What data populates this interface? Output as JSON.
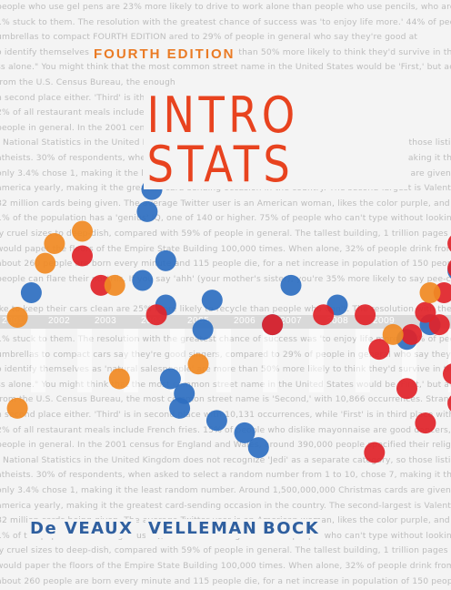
{
  "cover": {
    "edition": "FOURTH EDITION",
    "title": "INTRO STATS",
    "authors": [
      "De VEAUX",
      "VELLEMAN",
      "BOCK"
    ],
    "years": [
      "2001",
      "2002",
      "2003",
      "2004",
      "2005",
      "2006",
      "2007",
      "2008",
      "2009",
      "2010"
    ],
    "background_lines": [
      "people who use gel pens are 23% more likely to drive to work alone than people who use pencils, who are more likely",
      "1% stuck to them. The resolution with the greatest chance of success was 'to enjoy life more.' 44% of people with",
      "umbrellas to compact   FOURTH EDITION   ared to 29% of people in general who say they're good at",
      "o identify themselves as 'natural salespeople' are more than 50% more likely to think they'd survive in the year",
      "ss alone.\" You might think that the most common street name in the United States would be 'First,' but according",
      "from the U.S. Census Bureau, the                                                         enough",
      "n second place either. 'Third' is                                                        ith 9,8",
      "2% of all restaurant meals include                                                       ompar",
      "people in general. In the 2001 cen                                                      nd and",
      "r National Statistics in the United Kingdom does not recognize 'Jedi' as a separate category, so those listing 'Jedi'",
      "atheists. 30% of respondents, when asked to select a random number from 1 to 10, chose 7, making it the most",
      "only 3.4% chose 1, making it the least random number. Around 1,500,000,000 Christmas cards are given in the",
      "america yearly, making it the greatest card-sending occasion in the country. The second-largest is Valentine's Day",
      "82 million cards being given. The average Twitter user is an American woman, likes the color purple, and has",
      "1% of the population has a 'genius' IQ, one of 140 or higher. 75% of people who can't type without looking at the",
      "ly cruel sizes to deep-dish, compared with 59% of people in general. The tallest building, 1 trillion pages",
      "would paper the floors of the Empire State Building 100,000 times. When alone, 32% of people drink from the",
      "about 260 people are born every minute and 115 people die, for a net increase in population of 150 people every",
      "people can flare their nostrils. If you say 'ahh' (your mother's sister), you're 35% more likely to say pee-can than",
      "",
      "ike to keep their cars clean are 25% more likely to recycle than people who don't. The resolution with the",
      "2% of all statistics, including this one, are made up. In a study of 2,000 people who made New Year's resolutions,",
      "1% stuck to them. The resolution with the greatest chance of success was 'to enjoy life more.' 44% of people who",
      "umbrellas to compact cars say they're good singers, compared to 29% of people in general who say they're good at",
      "o identify themselves as 'natural salespeople' are more than 50% more likely to think they'd survive in the year",
      "ss alone.\" You might think that the most common street name in the United States would be 'First,' but according",
      "from the U.S. Census Bureau, the most common street name is 'Second,' with 10,866 occurrences. Strangely enough,",
      "n second place either. 'Third' is in second place with 10,131 occurrences, while 'First' is in third place with 9,8",
      "2% of all restaurant meals include French fries. 15% of people who dislike mayonnaise are good dancers, compared",
      "people in general. In the 2001 census for England and Wales, around 390,000 people specified their religion as 'Jedi'",
      "r National Statistics in the United Kingdom does not recognize 'Jedi' as a separate category, so those listing 'Jedi'",
      "atheists. 30% of respondents, when asked to select a random number from 1 to 10, chose 7, making it the most",
      "only 3.4% chose 1, making it the least random number. Around 1,500,000,000 Christmas cards are given in the",
      "america yearly, making it the greatest card-sending occasion in the country. The second-largest is Valentine's Day",
      "82 million cards being given. The average Twitter user is an American woman, likes the color purple, and has",
      "1% of the population has a 'genius' IQ, one of 140 or higher. 75% of people who can't type without looking at the",
      "ly cruel sizes to deep-dish, compared with 59% of people in general. The tallest building, 1 trillion pages",
      "would paper the floors of the Empire State Building 100,000 times. When alone, 32% of people drink from the",
      "about 260 people are born every minute and 115 people die, for a net increase in population of 150 people every"
    ]
  },
  "colors": {
    "background": "#f4f4f4",
    "title": "#e8431f",
    "edition": "#ea7b25",
    "authors": "#2f5f9f",
    "bg_text": "#bdbdbd",
    "year_band": "#d9d9d9"
  },
  "chart_data": {
    "type": "scatter",
    "x_categories": [
      "2001",
      "2002",
      "2003",
      "2004",
      "2005",
      "2006",
      "2007",
      "2008",
      "2009",
      "2010"
    ],
    "grid": true,
    "series": [
      {
        "color": "#2e6fc1",
        "points": [
          [
            0.4,
            55
          ],
          [
            2.9,
            88
          ],
          [
            3.0,
            97
          ],
          [
            3.7,
            14
          ],
          [
            3.6,
            8
          ],
          [
            2.8,
            60
          ],
          [
            3.3,
            50
          ],
          [
            3.4,
            20
          ],
          [
            4.1,
            40
          ],
          [
            3.3,
            68
          ],
          [
            4.3,
            52
          ],
          [
            4.4,
            3
          ],
          [
            5.6,
            42
          ],
          [
            5.0,
            -2
          ],
          [
            6.0,
            58
          ],
          [
            5.3,
            -8
          ],
          [
            7.0,
            50
          ],
          [
            8.5,
            36
          ],
          [
            9.8,
            48
          ],
          [
            9.6,
            64
          ],
          [
            9.0,
            42
          ],
          [
            9.7,
            81
          ]
        ]
      },
      {
        "color": "#e0232a",
        "points": [
          [
            1.5,
            70
          ],
          [
            1.9,
            58
          ],
          [
            3.1,
            46
          ],
          [
            5.6,
            42
          ],
          [
            6.7,
            46
          ],
          [
            7.6,
            46
          ],
          [
            8.5,
            16
          ],
          [
            8.9,
            47
          ],
          [
            9.3,
            55
          ],
          [
            8.6,
            38
          ],
          [
            9.6,
            75
          ],
          [
            9.8,
            93
          ],
          [
            9.6,
            10
          ],
          [
            9.2,
            42
          ],
          [
            7.9,
            32
          ],
          [
            9.5,
            22
          ],
          [
            8.9,
            2
          ],
          [
            7.8,
            -10
          ],
          [
            9.6,
            65
          ]
        ]
      },
      {
        "color": "#f08a24",
        "points": [
          [
            1.5,
            80
          ],
          [
            0.7,
            67
          ],
          [
            0.9,
            75
          ],
          [
            2.2,
            58
          ],
          [
            2.3,
            20
          ],
          [
            4.0,
            26
          ],
          [
            8.2,
            38
          ],
          [
            0.1,
            45
          ],
          [
            0.1,
            8
          ],
          [
            9.0,
            55
          ]
        ]
      }
    ]
  }
}
